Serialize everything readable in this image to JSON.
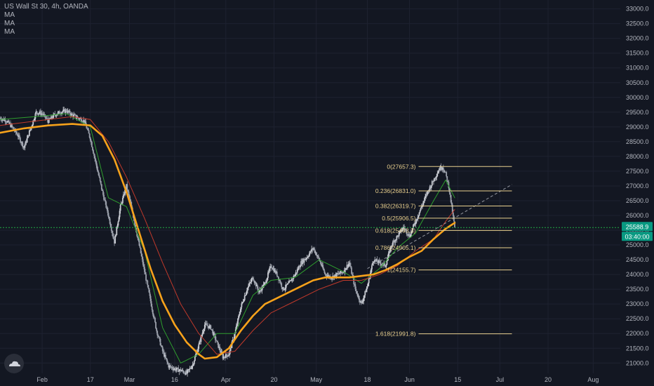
{
  "legend": {
    "title": "US Wall St 30, 4h, OANDA",
    "indicators": [
      "MA",
      "MA",
      "MA"
    ]
  },
  "colors": {
    "background": "#131722",
    "candle_up": "#c9ccd3",
    "candle_down": "#9ba0ab",
    "ma_fast": "#2e9e2e",
    "ma_mid": "#c0392b",
    "ma_slow": "#f7a21b",
    "fib": "#e8cf8e",
    "price_line": "#22ab45",
    "price_badge": "#089981",
    "trend_dashed": "#9598a1"
  },
  "price": {
    "current": "25588.9",
    "value": 25588.9,
    "countdown": "03:40:00"
  },
  "chart_data": {
    "type": "candlestick",
    "title": "US Wall St 30, 4h, OANDA",
    "ylim": [
      20650,
      33300
    ],
    "y_ticks": [
      21000,
      21500,
      22000,
      22500,
      23000,
      23500,
      24000,
      24500,
      25000,
      25500,
      26000,
      26500,
      27000,
      27500,
      28000,
      28500,
      29000,
      29500,
      30000,
      30500,
      31000,
      31500,
      32000,
      32500,
      33000
    ],
    "y_tick_labels": [
      "21000.0",
      "21500.0",
      "22000.0",
      "22500.0",
      "23000.0",
      "23500.0",
      "24000.0",
      "24500.0",
      "25000.0",
      "25500.0",
      "26000.0",
      "26500.0",
      "27000.0",
      "27500.0",
      "28000.0",
      "28500.0",
      "29000.0",
      "29500.0",
      "30000.0",
      "30500.0",
      "31000.0",
      "31500.0",
      "32000.0",
      "32500.0",
      "33000.0"
    ],
    "x_labels": [
      "Feb",
      "17",
      "Mar",
      "16",
      "Apr",
      "20",
      "May",
      "18",
      "Jun",
      "15",
      "Jul",
      "20",
      "Aug"
    ],
    "x_label_days": [
      22,
      38,
      51,
      66,
      83,
      99,
      113,
      130,
      144,
      160,
      174,
      190,
      205
    ],
    "day_range": [
      8,
      214
    ],
    "price_path": [
      [
        8,
        29300
      ],
      [
        10,
        29220
      ],
      [
        12,
        29000
      ],
      [
        14,
        28700
      ],
      [
        16,
        28300
      ],
      [
        18,
        28900
      ],
      [
        20,
        29500
      ],
      [
        22,
        29450
      ],
      [
        24,
        29200
      ],
      [
        26,
        29400
      ],
      [
        28,
        29500
      ],
      [
        30,
        29550
      ],
      [
        32,
        29400
      ],
      [
        34,
        29300
      ],
      [
        36,
        29200
      ],
      [
        38,
        28600
      ],
      [
        40,
        27700
      ],
      [
        42,
        26800
      ],
      [
        44,
        26000
      ],
      [
        46,
        25100
      ],
      [
        48,
        26300
      ],
      [
        50,
        27000
      ],
      [
        52,
        26100
      ],
      [
        54,
        25100
      ],
      [
        56,
        24100
      ],
      [
        58,
        23100
      ],
      [
        60,
        22100
      ],
      [
        62,
        21400
      ],
      [
        64,
        20900
      ],
      [
        66,
        20800
      ],
      [
        68,
        20750
      ],
      [
        70,
        20650
      ],
      [
        72,
        20950
      ],
      [
        74,
        21600
      ],
      [
        76,
        22300
      ],
      [
        78,
        22200
      ],
      [
        80,
        21700
      ],
      [
        82,
        21200
      ],
      [
        84,
        21300
      ],
      [
        86,
        22000
      ],
      [
        88,
        22900
      ],
      [
        90,
        23500
      ],
      [
        92,
        23900
      ],
      [
        94,
        23400
      ],
      [
        96,
        23700
      ],
      [
        98,
        24300
      ],
      [
        100,
        24000
      ],
      [
        102,
        23500
      ],
      [
        104,
        23700
      ],
      [
        106,
        24000
      ],
      [
        108,
        24400
      ],
      [
        110,
        24600
      ],
      [
        112,
        24900
      ],
      [
        114,
        24500
      ],
      [
        116,
        24000
      ],
      [
        118,
        23900
      ],
      [
        120,
        24000
      ],
      [
        122,
        24100
      ],
      [
        124,
        24400
      ],
      [
        126,
        23500
      ],
      [
        128,
        23000
      ],
      [
        130,
        23600
      ],
      [
        132,
        24500
      ],
      [
        134,
        24400
      ],
      [
        136,
        24300
      ],
      [
        138,
        25000
      ],
      [
        140,
        25300
      ],
      [
        142,
        25600
      ],
      [
        144,
        25300
      ],
      [
        146,
        25800
      ],
      [
        148,
        26300
      ],
      [
        150,
        26800
      ],
      [
        152,
        27200
      ],
      [
        154,
        27600
      ],
      [
        155,
        27650
      ],
      [
        156,
        27400
      ],
      [
        157,
        27000
      ],
      [
        158,
        26300
      ],
      [
        159,
        25588.9
      ]
    ],
    "moving_averages": [
      {
        "name": "MA",
        "values": [
          [
            8,
            29250
          ],
          [
            20,
            29350
          ],
          [
            30,
            29450
          ],
          [
            38,
            29000
          ],
          [
            44,
            26600
          ],
          [
            50,
            26300
          ],
          [
            56,
            24800
          ],
          [
            62,
            22200
          ],
          [
            68,
            21000
          ],
          [
            74,
            21300
          ],
          [
            80,
            22000
          ],
          [
            86,
            22000
          ],
          [
            92,
            23300
          ],
          [
            98,
            23800
          ],
          [
            106,
            23900
          ],
          [
            114,
            24500
          ],
          [
            122,
            24100
          ],
          [
            128,
            23700
          ],
          [
            134,
            24200
          ],
          [
            140,
            24900
          ],
          [
            146,
            25400
          ],
          [
            152,
            26500
          ],
          [
            156,
            27200
          ],
          [
            159,
            26600
          ]
        ]
      },
      {
        "name": "MA",
        "values": [
          [
            8,
            29050
          ],
          [
            20,
            29200
          ],
          [
            32,
            29350
          ],
          [
            38,
            29250
          ],
          [
            44,
            28500
          ],
          [
            50,
            27300
          ],
          [
            56,
            25900
          ],
          [
            62,
            24400
          ],
          [
            68,
            23000
          ],
          [
            74,
            22000
          ],
          [
            80,
            21300
          ],
          [
            86,
            21400
          ],
          [
            92,
            22100
          ],
          [
            98,
            22700
          ],
          [
            106,
            23100
          ],
          [
            114,
            23500
          ],
          [
            122,
            23800
          ],
          [
            128,
            23800
          ],
          [
            134,
            24000
          ],
          [
            140,
            24300
          ],
          [
            146,
            24800
          ],
          [
            152,
            25200
          ],
          [
            156,
            25800
          ],
          [
            159,
            26200
          ]
        ]
      },
      {
        "name": "MA",
        "values": [
          [
            8,
            28800
          ],
          [
            16,
            28950
          ],
          [
            24,
            29050
          ],
          [
            32,
            29100
          ],
          [
            38,
            29050
          ],
          [
            42,
            28700
          ],
          [
            46,
            27900
          ],
          [
            50,
            26800
          ],
          [
            54,
            25500
          ],
          [
            58,
            24200
          ],
          [
            62,
            23100
          ],
          [
            66,
            22300
          ],
          [
            70,
            21700
          ],
          [
            74,
            21300
          ],
          [
            76,
            21150
          ],
          [
            80,
            21200
          ],
          [
            84,
            21500
          ],
          [
            88,
            22100
          ],
          [
            92,
            22600
          ],
          [
            96,
            23000
          ],
          [
            100,
            23200
          ],
          [
            104,
            23400
          ],
          [
            108,
            23600
          ],
          [
            112,
            23800
          ],
          [
            116,
            23900
          ],
          [
            120,
            23900
          ],
          [
            124,
            23900
          ],
          [
            128,
            23950
          ],
          [
            132,
            24000
          ],
          [
            136,
            24150
          ],
          [
            140,
            24350
          ],
          [
            144,
            24600
          ],
          [
            148,
            24800
          ],
          [
            152,
            25200
          ],
          [
            156,
            25550
          ],
          [
            159,
            25750
          ]
        ]
      }
    ],
    "fibonacci": {
      "day_start": 147,
      "day_end": 178,
      "levels": [
        {
          "label": "0(27657.3)",
          "value": 27657.3
        },
        {
          "label": "0.236(26831.0)",
          "value": 26831.0
        },
        {
          "label": "0.382(26319.7)",
          "value": 26319.7
        },
        {
          "label": "0.5(25906.5)",
          "value": 25906.5
        },
        {
          "label": "0.618(25493.3)",
          "value": 25493.3
        },
        {
          "label": "0.786(24905.1)",
          "value": 24905.1
        },
        {
          "label": "1(24155.7)",
          "value": 24155.7
        },
        {
          "label": "1.618(21991.8)",
          "value": 21991.8
        }
      ]
    },
    "trendline": {
      "from": [
        130,
        24200
      ],
      "to": [
        178,
        27050
      ]
    },
    "grid": true,
    "legend_position": "top-left"
  }
}
